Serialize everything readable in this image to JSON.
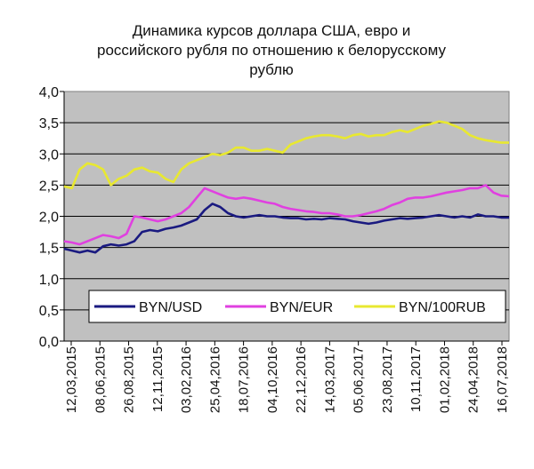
{
  "chart_data": {
    "type": "line",
    "title_lines": [
      "Динамика курсов доллара США, евро и",
      "российского рубля по отношению к белорусскому",
      "рублю"
    ],
    "ylim": [
      0,
      4
    ],
    "yticks": [
      "0,0",
      "0,5",
      "1,0",
      "1,5",
      "2,0",
      "2,5",
      "3,0",
      "3,5",
      "4,0"
    ],
    "x_tick_labels": [
      "12,03,2015",
      "08,06,2015",
      "26,08,2015",
      "12,11,2015",
      "03,02,2016",
      "25,04,2016",
      "18,07,2016",
      "04,10,2016",
      "22,12,2016",
      "14,03,2017",
      "05,06,2017",
      "23,08,2017",
      "10,11,2017",
      "01,02,2018",
      "24,04,2018",
      "16,07,2018"
    ],
    "plot_background": "#c0c0c0",
    "grid": true,
    "legend_position": "bottom-inside",
    "series": [
      {
        "name": "BYN/USD",
        "color": "#1a1a80",
        "values": [
          1.48,
          1.45,
          1.42,
          1.45,
          1.42,
          1.52,
          1.55,
          1.53,
          1.55,
          1.6,
          1.75,
          1.78,
          1.76,
          1.8,
          1.82,
          1.85,
          1.9,
          1.95,
          2.1,
          2.2,
          2.15,
          2.05,
          2.0,
          1.98,
          2.0,
          2.02,
          2.0,
          2.0,
          1.98,
          1.97,
          1.97,
          1.95,
          1.96,
          1.95,
          1.97,
          1.96,
          1.95,
          1.92,
          1.9,
          1.88,
          1.9,
          1.93,
          1.95,
          1.97,
          1.96,
          1.97,
          1.98,
          2.0,
          2.02,
          2.0,
          1.98,
          2.0,
          1.98,
          2.03,
          2.0,
          2.0,
          1.98,
          1.98
        ]
      },
      {
        "name": "BYN/EUR",
        "color": "#e040e0",
        "values": [
          1.6,
          1.58,
          1.55,
          1.6,
          1.65,
          1.7,
          1.68,
          1.65,
          1.72,
          2.0,
          1.98,
          1.95,
          1.92,
          1.95,
          2.0,
          2.05,
          2.15,
          2.3,
          2.45,
          2.4,
          2.35,
          2.3,
          2.28,
          2.3,
          2.28,
          2.25,
          2.22,
          2.2,
          2.15,
          2.12,
          2.1,
          2.08,
          2.07,
          2.05,
          2.05,
          2.03,
          2.0,
          2.0,
          2.02,
          2.05,
          2.08,
          2.12,
          2.18,
          2.22,
          2.28,
          2.3,
          2.3,
          2.32,
          2.35,
          2.38,
          2.4,
          2.42,
          2.45,
          2.45,
          2.5,
          2.38,
          2.33,
          2.32
        ]
      },
      {
        "name": "BYN/100RUB",
        "color": "#e8e830",
        "values": [
          2.48,
          2.45,
          2.75,
          2.85,
          2.82,
          2.75,
          2.5,
          2.6,
          2.65,
          2.75,
          2.78,
          2.72,
          2.7,
          2.6,
          2.55,
          2.75,
          2.85,
          2.9,
          2.95,
          3.0,
          2.98,
          3.02,
          3.1,
          3.1,
          3.05,
          3.05,
          3.08,
          3.05,
          3.02,
          3.15,
          3.2,
          3.25,
          3.28,
          3.3,
          3.3,
          3.28,
          3.25,
          3.3,
          3.32,
          3.28,
          3.3,
          3.3,
          3.35,
          3.38,
          3.35,
          3.4,
          3.45,
          3.48,
          3.52,
          3.5,
          3.45,
          3.4,
          3.3,
          3.25,
          3.22,
          3.2,
          3.18,
          3.18
        ]
      }
    ]
  }
}
